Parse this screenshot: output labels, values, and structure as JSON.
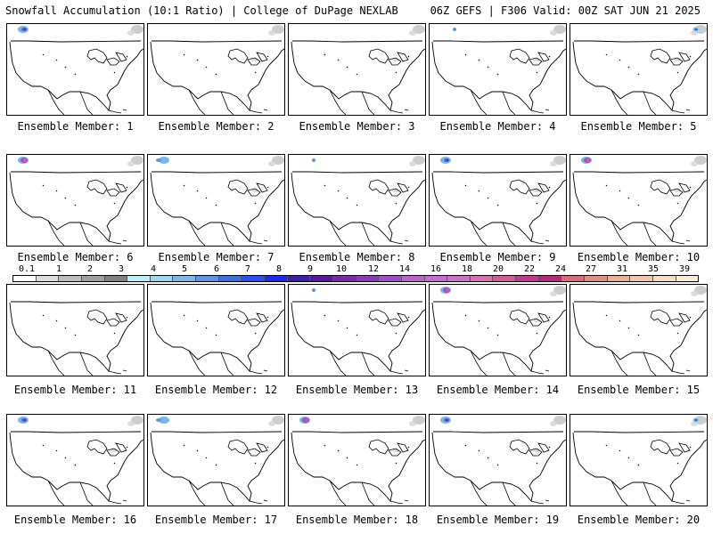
{
  "header": {
    "left": "Snowfall Accumulation (10:1 Ratio) | College of DuPage NEXLAB",
    "right": "06Z GEFS | F306 Valid: 00Z SAT JUN 21 2025"
  },
  "members": [
    {
      "label": "Ensemble Member: 1",
      "snow": "nw",
      "grey": "light"
    },
    {
      "label": "Ensemble Member: 2",
      "snow": "none",
      "grey": "ne"
    },
    {
      "label": "Ensemble Member: 3",
      "snow": "none",
      "grey": "ne"
    },
    {
      "label": "Ensemble Member: 4",
      "snow": "faint",
      "grey": "ne"
    },
    {
      "label": "Ensemble Member: 5",
      "snow": "ne",
      "grey": "ne"
    },
    {
      "label": "Ensemble Member: 6",
      "snow": "nw-heavy",
      "grey": "light"
    },
    {
      "label": "Ensemble Member: 7",
      "snow": "nw-faint",
      "grey": "ne"
    },
    {
      "label": "Ensemble Member: 8",
      "snow": "faint",
      "grey": "ne"
    },
    {
      "label": "Ensemble Member: 9",
      "snow": "nw-blue",
      "grey": "ne"
    },
    {
      "label": "Ensemble Member: 10",
      "snow": "nw-heavy",
      "grey": "ne"
    },
    {
      "label": "Ensemble Member: 11",
      "snow": "none",
      "grey": "none"
    },
    {
      "label": "Ensemble Member: 12",
      "snow": "none",
      "grey": "none"
    },
    {
      "label": "Ensemble Member: 13",
      "snow": "faint",
      "grey": "none"
    },
    {
      "label": "Ensemble Member: 14",
      "snow": "nw-pink",
      "grey": "ne"
    },
    {
      "label": "Ensemble Member: 15",
      "snow": "none",
      "grey": "light"
    },
    {
      "label": "Ensemble Member: 16",
      "snow": "nw",
      "grey": "ne"
    },
    {
      "label": "Ensemble Member: 17",
      "snow": "nw-faint",
      "grey": "light"
    },
    {
      "label": "Ensemble Member: 18",
      "snow": "nw-heavy",
      "grey": "ne"
    },
    {
      "label": "Ensemble Member: 19",
      "snow": "nw",
      "grey": "ne"
    },
    {
      "label": "Ensemble Member: 20",
      "snow": "ne",
      "grey": "light"
    }
  ],
  "legend": {
    "ticks": [
      "0.1",
      "1",
      "2",
      "3",
      "4",
      "5",
      "6",
      "7",
      "8",
      "9",
      "10",
      "12",
      "14",
      "16",
      "18",
      "20",
      "22",
      "24",
      "27",
      "31",
      "35",
      "39"
    ],
    "colors": [
      "#ffffff",
      "#dcdcdc",
      "#bdbdbd",
      "#9e9e9e",
      "#808080",
      "#b8eef5",
      "#9ad8f0",
      "#7ab8ec",
      "#5b96e6",
      "#3c6fe0",
      "#2a4ff0",
      "#1c2bf0",
      "#3b1fa8",
      "#5a189e",
      "#7a2aa8",
      "#8e3ab8",
      "#a44cc8",
      "#bc62d0",
      "#c86ad8",
      "#cf70c8",
      "#d670b0",
      "#d45a9a",
      "#c43a8a",
      "#b8287a",
      "#d86a7a",
      "#e09080",
      "#eab090",
      "#f0c8a8",
      "#f6dcc0",
      "#fbead8"
    ]
  }
}
